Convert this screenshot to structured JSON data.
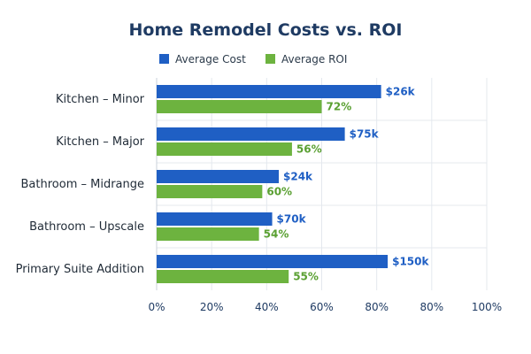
{
  "colors": {
    "cost": "#1f5fc4",
    "roi": "#6db33f",
    "cost_label": "#1f5fc4",
    "roi_label": "#5aa032"
  },
  "chart_data": {
    "type": "bar",
    "orientation": "horizontal",
    "title": "Home Remodel Costs vs. ROI",
    "legend_placement": "top",
    "grid": true,
    "categories": [
      "Kitchen – Minor",
      "Kitchen – Major",
      "Bathroom – Midrange",
      "Bathroom – Upscale",
      "Primary Suite Addition"
    ],
    "series": [
      {
        "name": "Average Cost",
        "values": [
          68,
          57,
          37,
          35,
          70
        ],
        "labels": [
          "$26k",
          "$75k",
          "$24k",
          "$70k",
          "$150k"
        ]
      },
      {
        "name": "Average ROI",
        "values": [
          50,
          41,
          32,
          31,
          40
        ],
        "labels": [
          "72%",
          "56%",
          "60%",
          "54%",
          "55%"
        ]
      }
    ],
    "x_ticks": [
      "0%",
      "20%",
      "40%",
      "60%",
      "80%",
      "80%",
      "100%"
    ],
    "xlim": [
      0,
      100
    ]
  }
}
